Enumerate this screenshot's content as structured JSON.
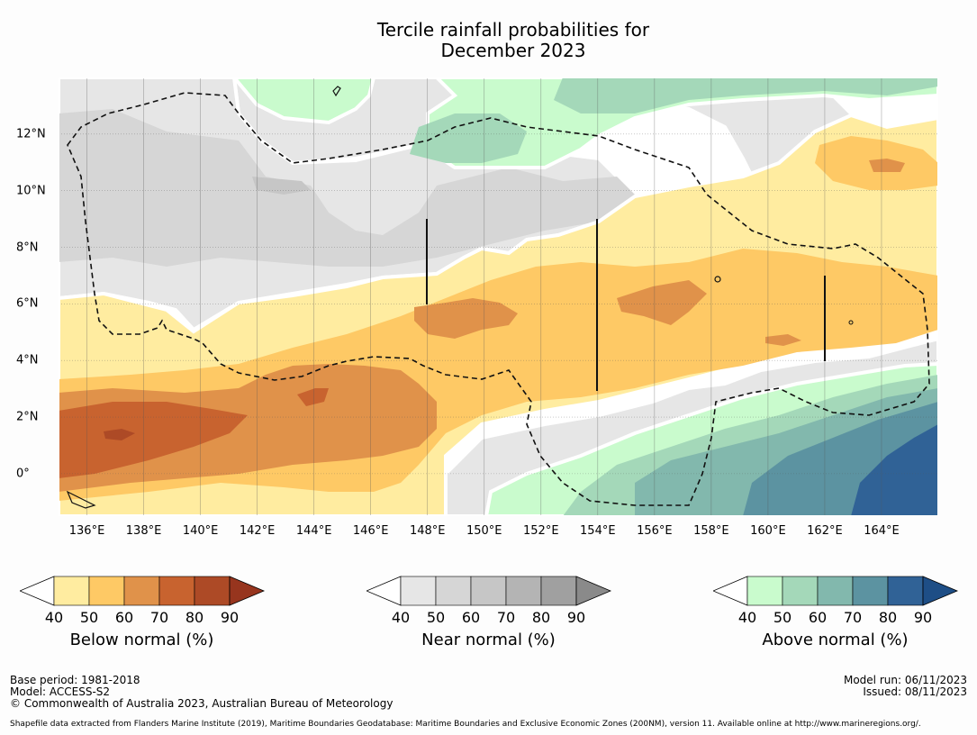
{
  "title": {
    "line1": "Tercile rainfall probabilities for",
    "line2": "December 2023"
  },
  "map": {
    "lon_min": 135.0,
    "lon_max": 166.0,
    "lat_min": -1.5,
    "lat_max": 14.0,
    "x_ticks": [
      {
        "lon": 136,
        "label": "136°E"
      },
      {
        "lon": 138,
        "label": "138°E"
      },
      {
        "lon": 140,
        "label": "140°E"
      },
      {
        "lon": 142,
        "label": "142°E"
      },
      {
        "lon": 144,
        "label": "144°E"
      },
      {
        "lon": 146,
        "label": "146°E"
      },
      {
        "lon": 148,
        "label": "148°E"
      },
      {
        "lon": 150,
        "label": "150°E"
      },
      {
        "lon": 152,
        "label": "152°E"
      },
      {
        "lon": 154,
        "label": "154°E"
      },
      {
        "lon": 156,
        "label": "156°E"
      },
      {
        "lon": 158,
        "label": "158°E"
      },
      {
        "lon": 160,
        "label": "160°E"
      },
      {
        "lon": 162,
        "label": "162°E"
      },
      {
        "lon": 164,
        "label": "164°E"
      }
    ],
    "y_ticks": [
      {
        "lat": 12,
        "label": "12°N"
      },
      {
        "lat": 10,
        "label": "10°N"
      },
      {
        "lat": 8,
        "label": "8°N"
      },
      {
        "lat": 6,
        "label": "6°N"
      },
      {
        "lat": 4,
        "label": "4°N"
      },
      {
        "lat": 2,
        "label": "2°N"
      },
      {
        "lat": 0,
        "label": "0°"
      }
    ]
  },
  "colorbars": [
    {
      "label": "Below normal (%)",
      "ticks": [
        "40",
        "50",
        "60",
        "70",
        "80",
        "90"
      ],
      "colors": [
        "#ffeca0",
        "#fec965",
        "#e0924a",
        "#c8632f",
        "#ad4a26",
        "#97351e"
      ]
    },
    {
      "label": "Near normal (%)",
      "ticks": [
        "40",
        "50",
        "60",
        "70",
        "80",
        "90"
      ],
      "colors": [
        "#e6e6e6",
        "#d6d6d6",
        "#c6c6c6",
        "#b4b4b4",
        "#a0a0a0",
        "#8a8a8a"
      ]
    },
    {
      "label": "Above normal (%)",
      "ticks": [
        "40",
        "50",
        "60",
        "70",
        "80",
        "90"
      ],
      "colors": [
        "#c9fbcd",
        "#a4d8b9",
        "#82b8ad",
        "#5c93a1",
        "#306296",
        "#1e4e86"
      ]
    }
  ],
  "footer": {
    "base_period": "Base period: 1981-2018",
    "model": "Model: ACCESS-S2",
    "copyright": "© Commonwealth of Australia 2023, Australian Bureau of Meteorology",
    "model_run": "Model run: 06/11/2023",
    "issued": "Issued: 08/11/2023",
    "shapefile_note": "Shapefile data extracted from Flanders Marine Institute (2019), Maritime Boundaries Geodatabase: Maritime Boundaries and Exclusive Economic Zones (200NM), version 11. Available online at http://www.marineregions.org/."
  }
}
